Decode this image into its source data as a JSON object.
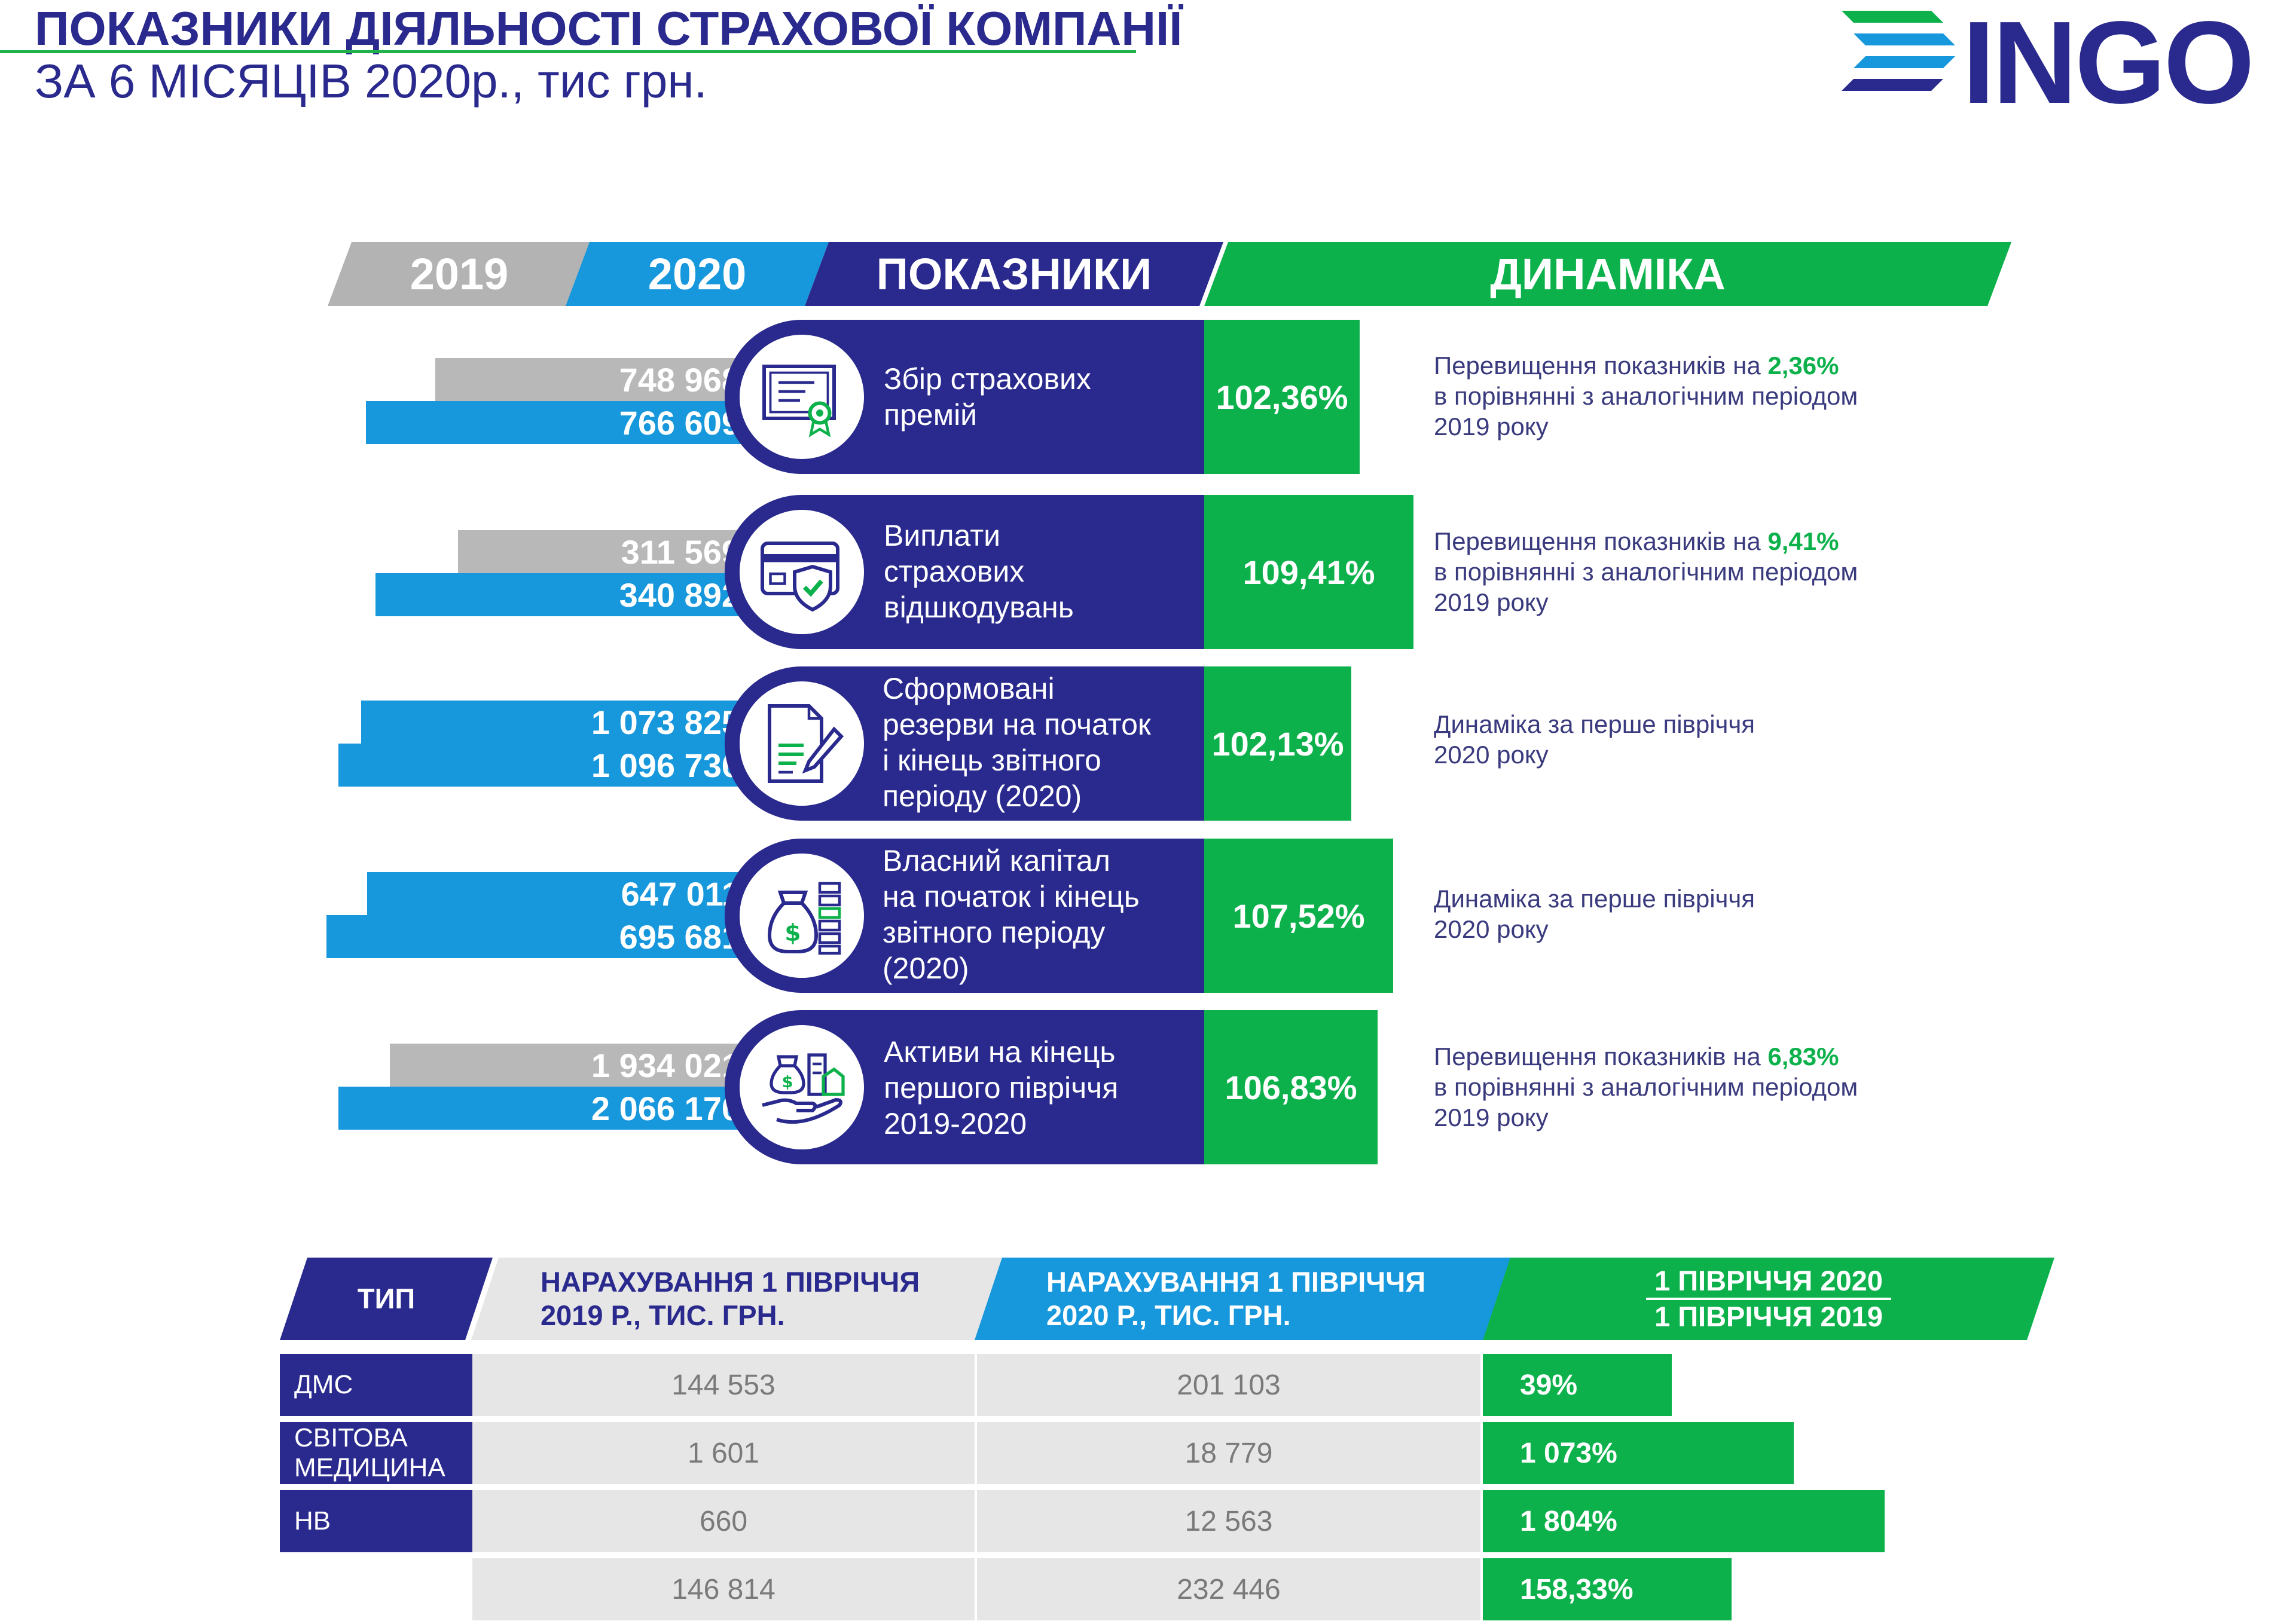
{
  "header": {
    "title": "ПОКАЗНИКИ ДІЯЛЬНОСТІ СТРАХОВОЇ КОМПАНІЇ",
    "subtitle": "ЗА 6 МІСЯЦІВ 2020р., тис грн.",
    "logo_text": "INGO"
  },
  "colors": {
    "navy": "#2a2a8e",
    "blue": "#1797dc",
    "green": "#0db14b",
    "gray": "#b3b3b3",
    "light_gray": "#e6e6e6"
  },
  "columns": {
    "y2019": "2019",
    "y2020": "2020",
    "indicators": "ПОКАЗНИКИ",
    "dynamics": "ДИНАМІКА"
  },
  "indicators": [
    {
      "value_2019": "748 968",
      "value_2020": "766 609",
      "label": "Збір страхових\nпремій",
      "icon": "certificate-icon",
      "dynamics": "102,36%",
      "note_prefix": "Перевищення показників на ",
      "note_highlight": "2,36%",
      "note_suffix": "\nв порівнянні з аналогічним періодом\n2019 року"
    },
    {
      "value_2019": "311 569",
      "value_2020": "340 892",
      "label": "Виплати\nстрахових\nвідшкодувань",
      "icon": "credit-card-shield-icon",
      "dynamics": "109,41%",
      "note_prefix": "Перевищення показників на ",
      "note_highlight": "9,41%",
      "note_suffix": "\nв порівнянні з аналогічним періодом\n2019 року"
    },
    {
      "value_2019": "1 073 825",
      "value_2020": "1 096 736",
      "label": "Сформовані\nрезерви на початок\nі кінець звітного\nперіоду (2020)",
      "icon": "document-pen-icon",
      "dynamics": "102,13%",
      "note_prefix": "Динаміка за перше півріччя\n2020 року",
      "note_highlight": "",
      "note_suffix": ""
    },
    {
      "value_2019": "647 011",
      "value_2020": "695 681",
      "label": "Власний капітал\nна початок і кінець\nзвітного періоду\n(2020)",
      "icon": "money-bag-coins-icon",
      "dynamics": "107,52%",
      "note_prefix": "Динаміка за перше півріччя\n2020 року",
      "note_highlight": "",
      "note_suffix": ""
    },
    {
      "value_2019": "1 934 021",
      "value_2020": "2 066 170",
      "label": "Активи на кінець\nпершого півріччя\n2019-2020",
      "icon": "hand-assets-icon",
      "dynamics": "106,83%",
      "note_prefix": "Перевищення показників на ",
      "note_highlight": "6,83%",
      "note_suffix": "\nв порівнянні з аналогічним періодом\n2019 року"
    }
  ],
  "table": {
    "headers": {
      "type": "ТИП",
      "h2019": "НАРАХУВАННЯ 1 ПІВРІЧЧЯ\n2019 Р., ТИС. ГРН.",
      "h2020": "НАРАХУВАННЯ 1 ПІВРІЧЧЯ\n2020 Р., ТИС. ГРН.",
      "ratio_top": "1 ПІВРІЧЧЯ 2020",
      "ratio_bottom": "1 ПІВРІЧЧЯ 2019"
    },
    "rows": [
      {
        "type": "ДМС",
        "v2019": "144 553",
        "v2020": "201 103",
        "ratio": "39%"
      },
      {
        "type": "СВІТОВА\nМЕДИЦИНА",
        "v2019": "1 601",
        "v2020": "18 779",
        "ratio": "1 073%"
      },
      {
        "type": "НВ",
        "v2019": "660",
        "v2020": "12 563",
        "ratio": "1 804%"
      },
      {
        "type": "",
        "v2019": "146 814",
        "v2020": "232 446",
        "ratio": "158,33%"
      }
    ]
  }
}
